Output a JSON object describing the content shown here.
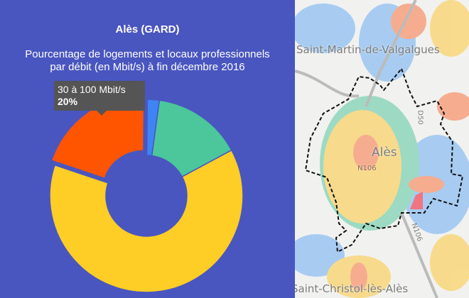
{
  "chart_data": {
    "type": "pie",
    "donut": true,
    "title": "Alès (GARD)",
    "subtitle_line1": "Pourcentage de logements et locaux professionnels",
    "subtitle_line2": "par débit (en Mbit/s) à fin décembre 2016",
    "slices": [
      {
        "value": 2,
        "color": "#3f84f5"
      },
      {
        "value": 15,
        "color": "#4cc69b"
      },
      {
        "value": 63,
        "color": "#fecd26"
      },
      {
        "name": "30 à 100 Mbit/s",
        "value": 20,
        "color": "#ff5501",
        "exploded": true
      }
    ],
    "tooltip": {
      "label": "30 à 100 Mbit/s",
      "value": "20%"
    }
  },
  "map": {
    "labels": {
      "north": "Saint-Martin-de-Valgalgues",
      "center": "Alès",
      "south": "Saint-Christol-lès-Alès",
      "road_n106": "N106",
      "road_d50": "D50",
      "road_n106b": "N106"
    }
  }
}
